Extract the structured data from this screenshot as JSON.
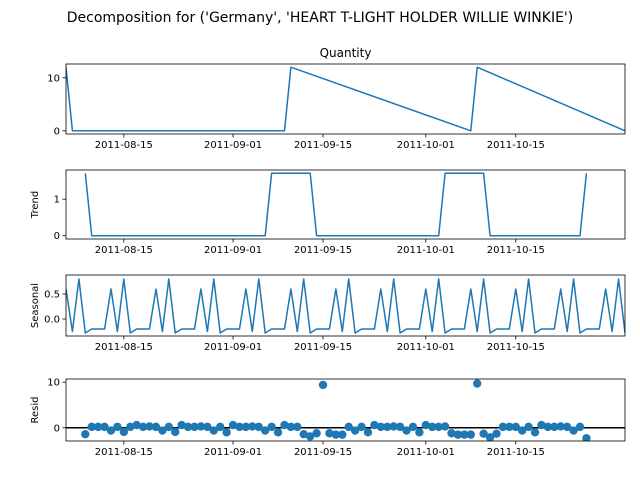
{
  "figure": {
    "suptitle": "Decomposition for ('Germany', 'HEART T-LIGHT HOLDER WILLIE WINKIE')"
  },
  "chart_data": [
    {
      "type": "line",
      "id": "observed",
      "title": "Quantity",
      "ylabel": "",
      "ylim": [
        -0.6,
        12.6
      ],
      "yticks": [
        0,
        10
      ],
      "xlim": [
        "2011-08-06",
        "2011-11-01"
      ],
      "xticks": [
        "2011-08-15",
        "2011-09-01",
        "2011-09-15",
        "2011-10-01",
        "2011-10-15"
      ],
      "color": "#1f77b4",
      "x": [
        "2011-08-06",
        "2011-08-07",
        "2011-09-09",
        "2011-09-10",
        "2011-10-08",
        "2011-10-09",
        "2011-11-01"
      ],
      "y": [
        12,
        0,
        0,
        12,
        0,
        12,
        0
      ]
    },
    {
      "type": "line",
      "id": "trend",
      "title": "",
      "ylabel": "Trend",
      "ylim": [
        -0.09,
        1.8
      ],
      "yticks": [
        0,
        1
      ],
      "xlim": [
        "2011-08-06",
        "2011-11-01"
      ],
      "xticks": [
        "2011-08-15",
        "2011-09-01",
        "2011-09-15",
        "2011-10-01",
        "2011-10-15"
      ],
      "color": "#1f77b4",
      "x": [
        "2011-08-09",
        "2011-08-10",
        "2011-09-06",
        "2011-09-07",
        "2011-09-13",
        "2011-09-14",
        "2011-10-03",
        "2011-10-04",
        "2011-10-10",
        "2011-10-11",
        "2011-10-25",
        "2011-10-26"
      ],
      "y": [
        1.71,
        0,
        0,
        1.71,
        1.71,
        0,
        0,
        1.71,
        1.71,
        0,
        0,
        1.71
      ]
    },
    {
      "type": "line",
      "id": "seasonal",
      "title": "",
      "ylabel": "Seasonal",
      "ylim": [
        -0.34,
        0.88
      ],
      "yticks": [
        0.5,
        0.0
      ],
      "ytick_labels": [
        "0.5",
        "0.0"
      ],
      "xlim": [
        "2011-08-06",
        "2011-11-01"
      ],
      "xticks": [
        "2011-08-15",
        "2011-09-01",
        "2011-09-15",
        "2011-10-01",
        "2011-10-15"
      ],
      "color": "#1f77b4",
      "period_values": [
        0.8,
        -0.28,
        -0.2,
        -0.2,
        -0.2,
        0.6,
        -0.25
      ],
      "start": "2011-08-08",
      "end": "2011-11-01",
      "x_lead": [
        "2011-08-06",
        "2011-08-07"
      ],
      "y_lead": [
        0.6,
        -0.25
      ]
    },
    {
      "type": "scatter",
      "id": "resid",
      "title": "",
      "ylabel": "Resid",
      "ylim": [
        -2.9,
        10.7
      ],
      "yticks": [
        0,
        10
      ],
      "xlim": [
        "2011-08-06",
        "2011-11-01"
      ],
      "xticks": [
        "2011-08-15",
        "2011-09-01",
        "2011-09-15",
        "2011-10-01",
        "2011-10-15"
      ],
      "color": "#1f77b4",
      "baseline": 0,
      "x": [
        "2011-08-09",
        "2011-08-10",
        "2011-08-11",
        "2011-08-12",
        "2011-08-13",
        "2011-08-14",
        "2011-08-15",
        "2011-08-16",
        "2011-08-17",
        "2011-08-18",
        "2011-08-19",
        "2011-08-20",
        "2011-08-21",
        "2011-08-22",
        "2011-08-23",
        "2011-08-24",
        "2011-08-25",
        "2011-08-26",
        "2011-08-27",
        "2011-08-28",
        "2011-08-29",
        "2011-08-30",
        "2011-08-31",
        "2011-09-01",
        "2011-09-02",
        "2011-09-03",
        "2011-09-04",
        "2011-09-05",
        "2011-09-06",
        "2011-09-07",
        "2011-09-08",
        "2011-09-09",
        "2011-09-10",
        "2011-09-11",
        "2011-09-12",
        "2011-09-13",
        "2011-09-14",
        "2011-09-15",
        "2011-09-16",
        "2011-09-17",
        "2011-09-18",
        "2011-09-19",
        "2011-09-20",
        "2011-09-21",
        "2011-09-22",
        "2011-09-23",
        "2011-09-24",
        "2011-09-25",
        "2011-09-26",
        "2011-09-27",
        "2011-09-28",
        "2011-09-29",
        "2011-09-30",
        "2011-10-01",
        "2011-10-02",
        "2011-10-03",
        "2011-10-04",
        "2011-10-05",
        "2011-10-06",
        "2011-10-07",
        "2011-10-08",
        "2011-10-09",
        "2011-10-10",
        "2011-10-11",
        "2011-10-12",
        "2011-10-13",
        "2011-10-14",
        "2011-10-15",
        "2011-10-16",
        "2011-10-17",
        "2011-10-18",
        "2011-10-19",
        "2011-10-20",
        "2011-10-21",
        "2011-10-22",
        "2011-10-23",
        "2011-10-24",
        "2011-10-25",
        "2011-10-26"
      ],
      "y": [
        -1.4,
        0.2,
        0.2,
        0.2,
        -0.6,
        0.2,
        -0.9,
        0.2,
        0.6,
        0.2,
        0.3,
        0.2,
        -0.6,
        0.2,
        -0.9,
        0.6,
        0.2,
        0.2,
        0.3,
        0.2,
        -0.6,
        0.2,
        -1.0,
        0.6,
        0.2,
        0.2,
        0.3,
        0.2,
        -0.6,
        0.2,
        -1.0,
        0.6,
        0.2,
        0.2,
        -1.4,
        -1.9,
        -1.2,
        9.4,
        -1.2,
        -1.5,
        -1.5,
        0.2,
        -0.6,
        0.2,
        -1.0,
        0.6,
        0.2,
        0.2,
        0.3,
        0.2,
        -0.6,
        0.2,
        -1.0,
        0.6,
        0.2,
        0.2,
        0.3,
        -1.2,
        -1.5,
        -1.5,
        -1.5,
        9.7,
        -1.3,
        -2.1,
        -1.3,
        0.2,
        0.2,
        0.2,
        -0.6,
        0.2,
        -1.0,
        0.6,
        0.2,
        0.2,
        0.3,
        0.2,
        -0.6,
        0.2,
        -2.3
      ]
    }
  ]
}
